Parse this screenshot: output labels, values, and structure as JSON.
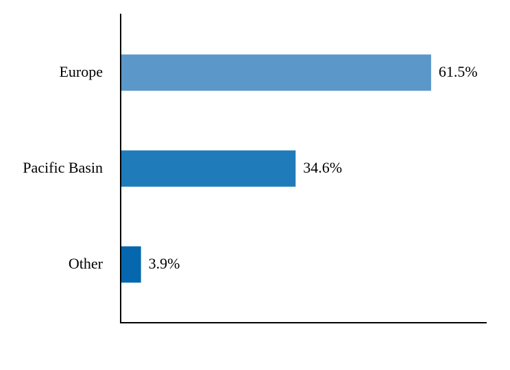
{
  "chart_data": {
    "type": "hbar",
    "categories": [
      "Europe",
      "Pacific Basin",
      "Other"
    ],
    "values": [
      61.5,
      34.6,
      3.9
    ],
    "value_labels": [
      "61.5%",
      "34.6%",
      "3.9%"
    ],
    "colors": [
      "#5b97c9",
      "#1f7bb9",
      "#0567ad"
    ],
    "xlim": [
      0,
      72.4
    ]
  }
}
